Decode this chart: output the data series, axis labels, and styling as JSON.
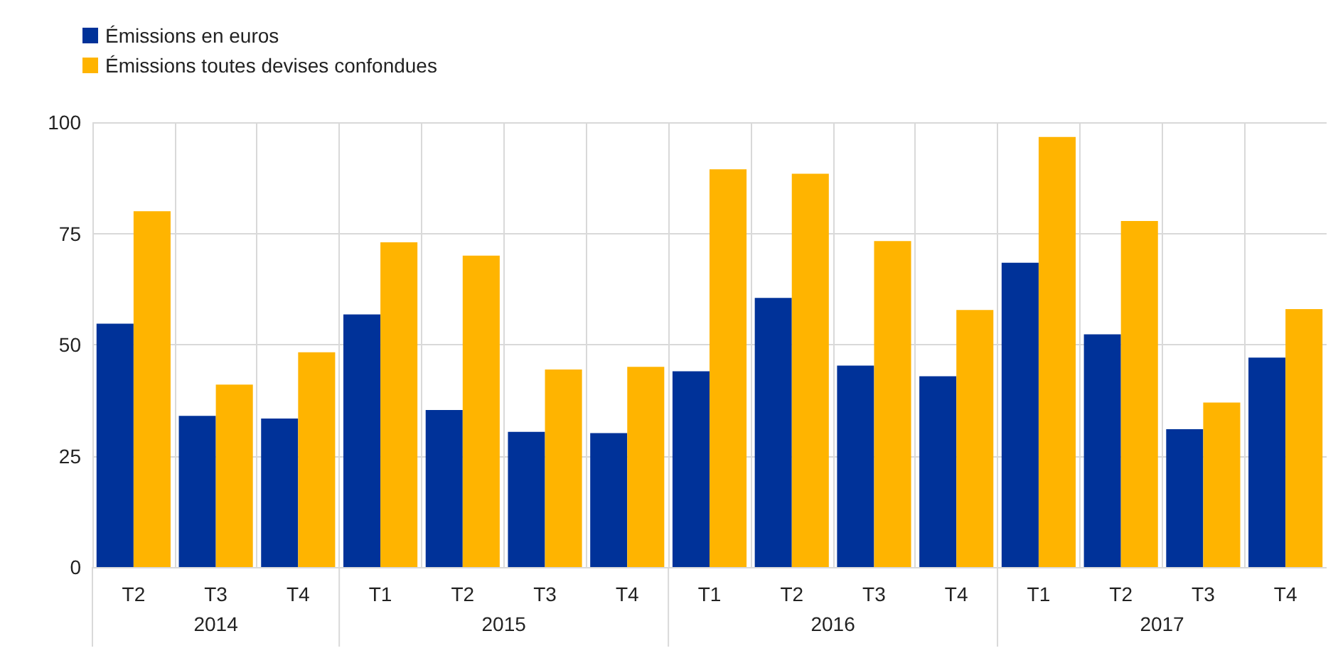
{
  "chart_data": {
    "type": "bar",
    "categories": [
      "T2",
      "T3",
      "T4",
      "T1",
      "T2",
      "T3",
      "T4",
      "T1",
      "T2",
      "T3",
      "T4",
      "T1",
      "T2",
      "T3",
      "T4"
    ],
    "series": [
      {
        "name": "Émissions en euros",
        "color": "#003299",
        "values": [
          54.7,
          34,
          33.4,
          56.8,
          35.3,
          30.4,
          30.1,
          44,
          60.5,
          45.3,
          42.9,
          68.4,
          52.3,
          31,
          47.1
        ]
      },
      {
        "name": "Émissions toutes devises confondues",
        "color": "#ffb400",
        "values": [
          80,
          41,
          48.3,
          73,
          70,
          44.4,
          45,
          89.4,
          88.4,
          73.3,
          57.8,
          96.7,
          77.8,
          37,
          58
        ]
      }
    ],
    "ylim": [
      0,
      100
    ],
    "yticks": [
      0,
      25,
      50,
      75,
      100
    ],
    "grid": true,
    "legend": "top left",
    "annotations": [
      "2014",
      "2015",
      "2016",
      "2017"
    ]
  }
}
